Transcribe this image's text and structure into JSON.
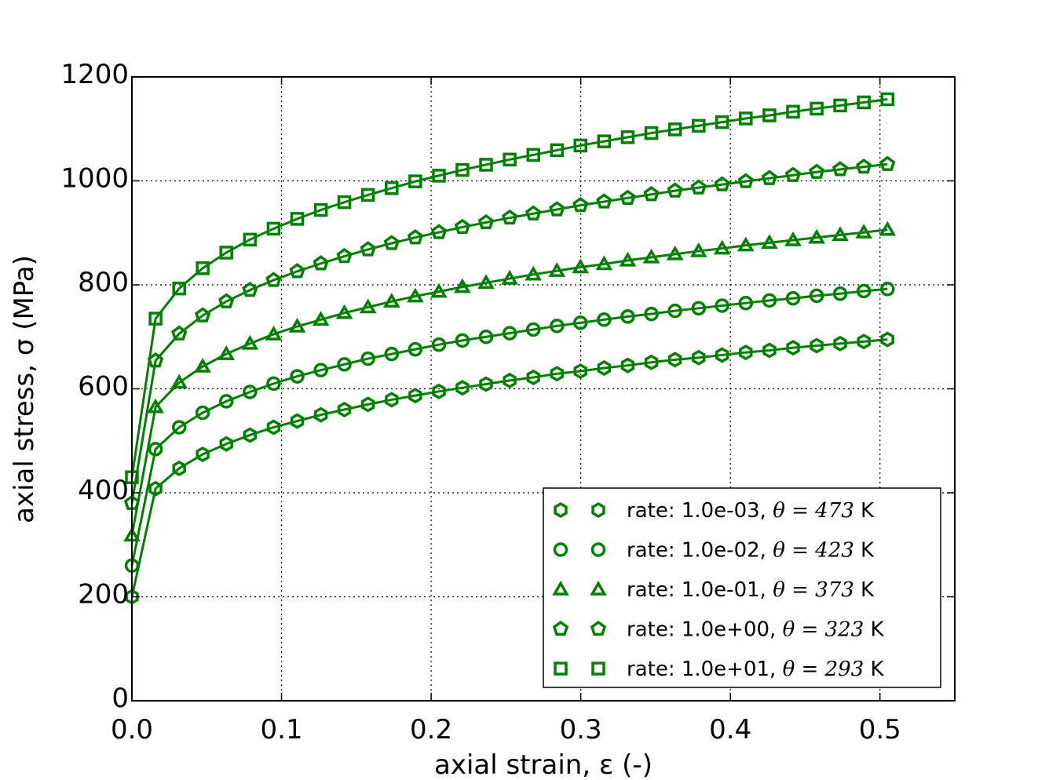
{
  "chart_data": {
    "type": "line",
    "title": "",
    "xlabel": "axial strain, ε (-)",
    "ylabel": "axial stress, σ (MPa)",
    "xlim": [
      0,
      0.55
    ],
    "ylim": [
      0,
      1200
    ],
    "xticks": [
      "0.0",
      "0.1",
      "0.2",
      "0.3",
      "0.4",
      "0.5"
    ],
    "yticks": [
      "0",
      "200",
      "400",
      "600",
      "800",
      "1000",
      "1200"
    ],
    "grid": true,
    "legend_position": "lower-right",
    "color": "#008000",
    "x": [
      0,
      0.0158,
      0.0316,
      0.0473,
      0.0631,
      0.0789,
      0.0947,
      0.1105,
      0.1263,
      0.142,
      0.1578,
      0.1736,
      0.1894,
      0.2052,
      0.2209,
      0.2367,
      0.2525,
      0.2683,
      0.2841,
      0.2998,
      0.3156,
      0.3314,
      0.3472,
      0.363,
      0.3788,
      0.3945,
      0.4103,
      0.4261,
      0.4419,
      0.4577,
      0.4734,
      0.4892,
      0.505
    ],
    "series": [
      {
        "name": "rate: 1.0e-03, θ = 473 K",
        "label_prefix": "rate: 1.0e-03, ",
        "theta": "θ = 473",
        "unit": " K",
        "marker": "hexagon",
        "values": [
          200,
          408,
          447,
          474,
          494,
          511,
          526,
          538,
          550,
          560,
          570,
          579,
          587,
          595,
          602,
          609,
          616,
          622,
          629,
          634,
          640,
          645,
          651,
          656,
          660,
          665,
          670,
          674,
          679,
          683,
          687,
          691,
          695
        ]
      },
      {
        "name": "rate: 1.0e-02, θ = 423 K",
        "label_prefix": "rate: 1.0e-02, ",
        "theta": "θ = 423",
        "unit": " K",
        "marker": "circle",
        "values": [
          260,
          484,
          526,
          554,
          576,
          594,
          610,
          624,
          636,
          647,
          658,
          667,
          676,
          685,
          693,
          700,
          707,
          714,
          721,
          727,
          733,
          739,
          744,
          750,
          755,
          760,
          765,
          770,
          774,
          779,
          783,
          788,
          792
        ]
      },
      {
        "name": "rate: 1.0e-01, θ = 373 K",
        "label_prefix": "rate: 1.0e-01, ",
        "theta": "θ = 373",
        "unit": " K",
        "marker": "triangle",
        "values": [
          318,
          565,
          612,
          643,
          667,
          687,
          705,
          720,
          733,
          746,
          757,
          768,
          778,
          787,
          796,
          804,
          812,
          820,
          827,
          834,
          840,
          847,
          853,
          859,
          865,
          870,
          876,
          881,
          886,
          891,
          896,
          901,
          906
        ]
      },
      {
        "name": "rate: 1.0e+00, θ = 323 K",
        "label_prefix": "rate: 1.0e+00, ",
        "theta": "θ = 323",
        "unit": " K",
        "marker": "pentagon",
        "values": [
          380,
          654,
          706,
          741,
          768,
          790,
          809,
          826,
          841,
          855,
          868,
          880,
          891,
          901,
          911,
          920,
          929,
          937,
          945,
          953,
          960,
          967,
          974,
          981,
          987,
          993,
          999,
          1005,
          1011,
          1017,
          1022,
          1027,
          1032
        ]
      },
      {
        "name": "rate: 1.0e+01, θ = 293 K",
        "label_prefix": "rate: 1.0e+01, ",
        "theta": "θ = 293",
        "unit": " K",
        "marker": "square",
        "values": [
          430,
          735,
          793,
          832,
          862,
          887,
          908,
          927,
          944,
          959,
          973,
          986,
          999,
          1010,
          1021,
          1031,
          1041,
          1050,
          1059,
          1068,
          1076,
          1084,
          1092,
          1099,
          1106,
          1113,
          1120,
          1126,
          1133,
          1139,
          1145,
          1151,
          1157
        ]
      }
    ]
  }
}
